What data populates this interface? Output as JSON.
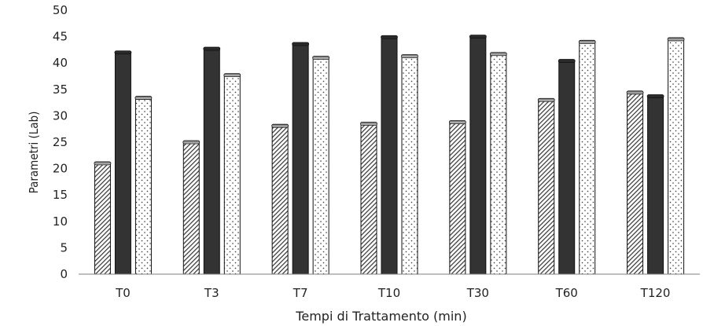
{
  "chart_data": {
    "type": "bar",
    "title": "",
    "xlabel": "Tempi di Trattamento (min)",
    "ylabel": "Parametri (Lab)",
    "ylim": [
      0,
      50
    ],
    "yticks": [
      0,
      5,
      10,
      15,
      20,
      25,
      30,
      35,
      40,
      45,
      50
    ],
    "grid": false,
    "legend": "none",
    "categories": [
      "T0",
      "T3",
      "T7",
      "T10",
      "T30",
      "T60",
      "T120"
    ],
    "series": [
      {
        "fill": "diagonal-hatch",
        "color": "#333333",
        "values": [
          21.0,
          25.0,
          28.1,
          28.5,
          28.8,
          33.0,
          34.4
        ]
      },
      {
        "fill": "solid",
        "color": "#333333",
        "values": [
          42.0,
          42.7,
          43.6,
          44.9,
          45.0,
          40.4,
          33.7
        ]
      },
      {
        "fill": "dotted",
        "color": "#333333",
        "values": [
          33.4,
          37.7,
          41.0,
          41.3,
          41.7,
          44.0,
          44.5
        ]
      }
    ]
  }
}
